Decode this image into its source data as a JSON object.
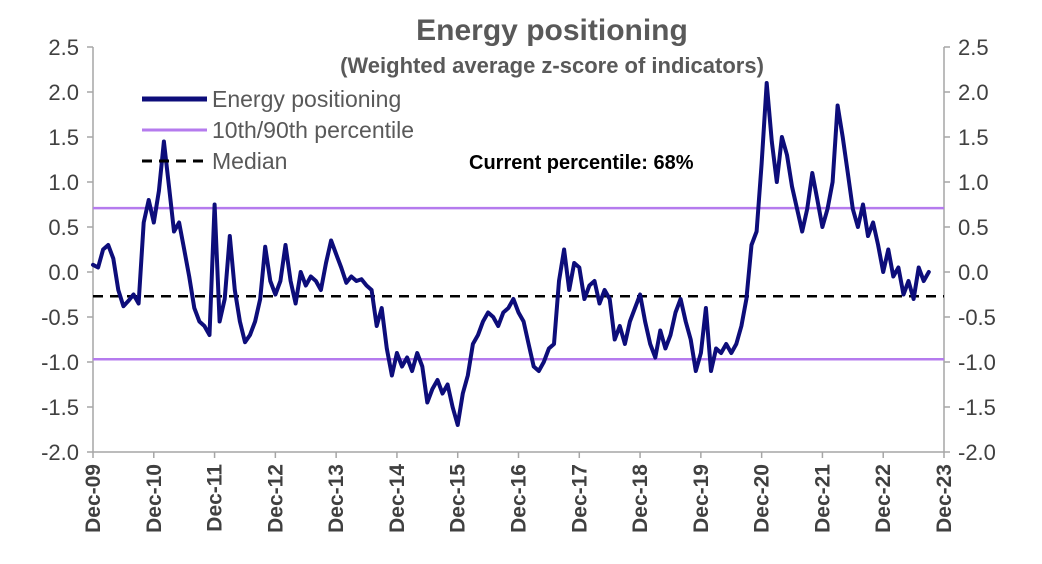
{
  "chart_data": {
    "type": "line",
    "title": "Energy positioning",
    "subtitle": "(Weighted average z-score of indicators)",
    "annotation": "Current percentile: 68%",
    "ylim": [
      -2.0,
      2.5
    ],
    "y_ticks": [
      "2.5",
      "2.0",
      "1.5",
      "1.0",
      "0.5",
      "0.0",
      "-0.5",
      "-1.0",
      "-1.5",
      "-2.0"
    ],
    "y_tick_values": [
      2.5,
      2.0,
      1.5,
      1.0,
      0.5,
      0.0,
      -0.5,
      -1.0,
      -1.5,
      -2.0
    ],
    "x_ticks": [
      "Dec-09",
      "Dec-10",
      "Dec-11",
      "Dec-12",
      "Dec-13",
      "Dec-14",
      "Dec-15",
      "Dec-16",
      "Dec-17",
      "Dec-18",
      "Dec-19",
      "Dec-20",
      "Dec-21",
      "Dec-22",
      "Dec-23"
    ],
    "x_range": [
      "2009-12",
      "2023-12"
    ],
    "grid": false,
    "legend_position": "top-left",
    "series": [
      {
        "name": "Energy positioning",
        "color": "#0d0d7a",
        "style": "solid",
        "points": [
          [
            "2009-12",
            0.08
          ],
          [
            "2010-01",
            0.05
          ],
          [
            "2010-02",
            0.25
          ],
          [
            "2010-03",
            0.3
          ],
          [
            "2010-04",
            0.15
          ],
          [
            "2010-05",
            -0.2
          ],
          [
            "2010-06",
            -0.38
          ],
          [
            "2010-07",
            -0.32
          ],
          [
            "2010-08",
            -0.25
          ],
          [
            "2010-09",
            -0.35
          ],
          [
            "2010-10",
            0.55
          ],
          [
            "2010-11",
            0.8
          ],
          [
            "2010-12",
            0.55
          ],
          [
            "2011-01",
            0.9
          ],
          [
            "2011-02",
            1.45
          ],
          [
            "2011-03",
            0.95
          ],
          [
            "2011-04",
            0.45
          ],
          [
            "2011-05",
            0.55
          ],
          [
            "2011-06",
            0.25
          ],
          [
            "2011-07",
            -0.05
          ],
          [
            "2011-08",
            -0.4
          ],
          [
            "2011-09",
            -0.55
          ],
          [
            "2011-10",
            -0.6
          ],
          [
            "2011-11",
            -0.7
          ],
          [
            "2011-12",
            0.75
          ],
          [
            "2012-01",
            -0.55
          ],
          [
            "2012-02",
            -0.3
          ],
          [
            "2012-03",
            0.4
          ],
          [
            "2012-04",
            -0.2
          ],
          [
            "2012-05",
            -0.55
          ],
          [
            "2012-06",
            -0.78
          ],
          [
            "2012-07",
            -0.7
          ],
          [
            "2012-08",
            -0.55
          ],
          [
            "2012-09",
            -0.3
          ],
          [
            "2012-10",
            0.28
          ],
          [
            "2012-11",
            -0.1
          ],
          [
            "2012-12",
            -0.25
          ],
          [
            "2013-01",
            -0.1
          ],
          [
            "2013-02",
            0.3
          ],
          [
            "2013-03",
            -0.1
          ],
          [
            "2013-04",
            -0.35
          ],
          [
            "2013-05",
            0.0
          ],
          [
            "2013-06",
            -0.15
          ],
          [
            "2013-07",
            -0.05
          ],
          [
            "2013-08",
            -0.1
          ],
          [
            "2013-09",
            -0.2
          ],
          [
            "2013-10",
            0.1
          ],
          [
            "2013-11",
            0.35
          ],
          [
            "2013-12",
            0.2
          ],
          [
            "2014-01",
            0.05
          ],
          [
            "2014-02",
            -0.12
          ],
          [
            "2014-03",
            -0.05
          ],
          [
            "2014-04",
            -0.1
          ],
          [
            "2014-05",
            -0.08
          ],
          [
            "2014-06",
            -0.15
          ],
          [
            "2014-07",
            -0.2
          ],
          [
            "2014-08",
            -0.6
          ],
          [
            "2014-09",
            -0.4
          ],
          [
            "2014-10",
            -0.85
          ],
          [
            "2014-11",
            -1.15
          ],
          [
            "2014-12",
            -0.9
          ],
          [
            "2015-01",
            -1.05
          ],
          [
            "2015-02",
            -0.95
          ],
          [
            "2015-03",
            -1.1
          ],
          [
            "2015-04",
            -0.9
          ],
          [
            "2015-05",
            -1.05
          ],
          [
            "2015-06",
            -1.45
          ],
          [
            "2015-07",
            -1.3
          ],
          [
            "2015-08",
            -1.2
          ],
          [
            "2015-09",
            -1.35
          ],
          [
            "2015-10",
            -1.25
          ],
          [
            "2015-11",
            -1.5
          ],
          [
            "2015-12",
            -1.7
          ],
          [
            "2016-01",
            -1.35
          ],
          [
            "2016-02",
            -1.15
          ],
          [
            "2016-03",
            -0.8
          ],
          [
            "2016-04",
            -0.7
          ],
          [
            "2016-05",
            -0.55
          ],
          [
            "2016-06",
            -0.45
          ],
          [
            "2016-07",
            -0.5
          ],
          [
            "2016-08",
            -0.6
          ],
          [
            "2016-09",
            -0.45
          ],
          [
            "2016-10",
            -0.4
          ],
          [
            "2016-11",
            -0.3
          ],
          [
            "2016-12",
            -0.45
          ],
          [
            "2017-01",
            -0.55
          ],
          [
            "2017-02",
            -0.8
          ],
          [
            "2017-03",
            -1.05
          ],
          [
            "2017-04",
            -1.1
          ],
          [
            "2017-05",
            -1.0
          ],
          [
            "2017-06",
            -0.85
          ],
          [
            "2017-07",
            -0.8
          ],
          [
            "2017-08",
            -0.1
          ],
          [
            "2017-09",
            0.25
          ],
          [
            "2017-10",
            -0.2
          ],
          [
            "2017-11",
            0.1
          ],
          [
            "2017-12",
            0.05
          ],
          [
            "2018-01",
            -0.3
          ],
          [
            "2018-02",
            -0.15
          ],
          [
            "2018-03",
            -0.1
          ],
          [
            "2018-04",
            -0.35
          ],
          [
            "2018-05",
            -0.2
          ],
          [
            "2018-06",
            -0.3
          ],
          [
            "2018-07",
            -0.75
          ],
          [
            "2018-08",
            -0.6
          ],
          [
            "2018-09",
            -0.8
          ],
          [
            "2018-10",
            -0.55
          ],
          [
            "2018-11",
            -0.4
          ],
          [
            "2018-12",
            -0.25
          ],
          [
            "2019-01",
            -0.55
          ],
          [
            "2019-02",
            -0.8
          ],
          [
            "2019-03",
            -0.95
          ],
          [
            "2019-04",
            -0.65
          ],
          [
            "2019-05",
            -0.85
          ],
          [
            "2019-06",
            -0.7
          ],
          [
            "2019-07",
            -0.45
          ],
          [
            "2019-08",
            -0.3
          ],
          [
            "2019-09",
            -0.55
          ],
          [
            "2019-10",
            -0.75
          ],
          [
            "2019-11",
            -1.1
          ],
          [
            "2019-12",
            -0.9
          ],
          [
            "2020-01",
            -0.4
          ],
          [
            "2020-02",
            -1.1
          ],
          [
            "2020-03",
            -0.85
          ],
          [
            "2020-04",
            -0.9
          ],
          [
            "2020-05",
            -0.8
          ],
          [
            "2020-06",
            -0.9
          ],
          [
            "2020-07",
            -0.8
          ],
          [
            "2020-08",
            -0.6
          ],
          [
            "2020-09",
            -0.3
          ],
          [
            "2020-10",
            0.3
          ],
          [
            "2020-11",
            0.45
          ],
          [
            "2020-12",
            1.2
          ],
          [
            "2021-01",
            2.1
          ],
          [
            "2021-02",
            1.45
          ],
          [
            "2021-03",
            1.0
          ],
          [
            "2021-04",
            1.5
          ],
          [
            "2021-05",
            1.3
          ],
          [
            "2021-06",
            0.95
          ],
          [
            "2021-07",
            0.7
          ],
          [
            "2021-08",
            0.45
          ],
          [
            "2021-09",
            0.7
          ],
          [
            "2021-10",
            1.1
          ],
          [
            "2021-11",
            0.8
          ],
          [
            "2021-12",
            0.5
          ],
          [
            "2022-01",
            0.7
          ],
          [
            "2022-02",
            1.0
          ],
          [
            "2022-03",
            1.85
          ],
          [
            "2022-04",
            1.5
          ],
          [
            "2022-05",
            1.1
          ],
          [
            "2022-06",
            0.7
          ],
          [
            "2022-07",
            0.5
          ],
          [
            "2022-08",
            0.75
          ],
          [
            "2022-09",
            0.4
          ],
          [
            "2022-10",
            0.55
          ],
          [
            "2022-11",
            0.3
          ],
          [
            "2022-12",
            0.0
          ],
          [
            "2023-01",
            0.25
          ],
          [
            "2023-02",
            -0.05
          ],
          [
            "2023-03",
            0.05
          ],
          [
            "2023-04",
            -0.25
          ],
          [
            "2023-05",
            -0.1
          ],
          [
            "2023-06",
            -0.3
          ],
          [
            "2023-07",
            0.05
          ],
          [
            "2023-08",
            -0.1
          ],
          [
            "2023-09",
            0.0
          ]
        ]
      },
      {
        "name": "10th/90th percentile",
        "color": "#b57bee",
        "style": "solid",
        "values": [
          0.71,
          -0.97
        ]
      },
      {
        "name": "Median",
        "color": "#000000",
        "style": "dashed",
        "value": -0.27
      }
    ]
  }
}
